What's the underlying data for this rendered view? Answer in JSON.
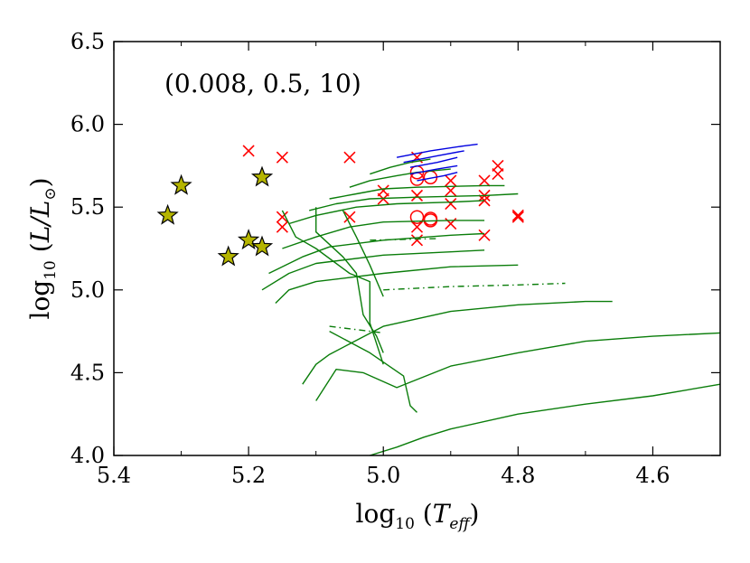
{
  "chart_data": {
    "type": "scatter",
    "title": "",
    "annotation": "(0.008, 0.5, 10)",
    "xlabel": {
      "prefix": "log",
      "sub": "10",
      "arg": "T",
      "arg_sub": "eff"
    },
    "ylabel": {
      "prefix": "log",
      "sub": "10",
      "arg": "L/L",
      "arg_sub": "⊙"
    },
    "xlim": [
      5.4,
      4.5
    ],
    "ylim": [
      4.0,
      6.5
    ],
    "x_ticks": [
      {
        "v": 5.4,
        "label": "5.4"
      },
      {
        "v": 5.2,
        "label": "5.2"
      },
      {
        "v": 5.0,
        "label": "5.0"
      },
      {
        "v": 4.8,
        "label": "4.8"
      },
      {
        "v": 4.6,
        "label": "4.6"
      }
    ],
    "x_minor_ticks": [
      5.3,
      5.1,
      4.9,
      4.7,
      4.5
    ],
    "y_ticks": [
      {
        "v": 4.0,
        "label": "4.0"
      },
      {
        "v": 4.5,
        "label": "4.5"
      },
      {
        "v": 5.0,
        "label": "5.0"
      },
      {
        "v": 5.5,
        "label": "5.5"
      },
      {
        "v": 6.0,
        "label": "6.0"
      },
      {
        "v": 6.5,
        "label": "6.5"
      }
    ],
    "colors": {
      "stars": "#b5b500",
      "cross": "#ff0000",
      "circle": "#ff0000",
      "green": "#0a7d0a",
      "blue": "#0000e0"
    },
    "series": [
      {
        "name": "stars",
        "marker": "star",
        "points": [
          [
            5.32,
            5.45
          ],
          [
            5.3,
            5.63
          ],
          [
            5.23,
            5.2
          ],
          [
            5.2,
            5.3
          ],
          [
            5.18,
            5.26
          ],
          [
            5.18,
            5.68
          ]
        ]
      },
      {
        "name": "crosses",
        "marker": "x",
        "points": [
          [
            5.2,
            5.84
          ],
          [
            5.15,
            5.8
          ],
          [
            5.15,
            5.44
          ],
          [
            5.15,
            5.38
          ],
          [
            5.05,
            5.8
          ],
          [
            5.05,
            5.44
          ],
          [
            5.0,
            5.6
          ],
          [
            5.0,
            5.55
          ],
          [
            4.95,
            5.8
          ],
          [
            4.95,
            5.57
          ],
          [
            4.95,
            5.38
          ],
          [
            4.95,
            5.3
          ],
          [
            4.9,
            5.66
          ],
          [
            4.9,
            5.6
          ],
          [
            4.9,
            5.52
          ],
          [
            4.9,
            5.4
          ],
          [
            4.85,
            5.66
          ],
          [
            4.85,
            5.57
          ],
          [
            4.85,
            5.54
          ],
          [
            4.85,
            5.33
          ],
          [
            4.83,
            5.75
          ],
          [
            4.83,
            5.7
          ],
          [
            4.8,
            5.45
          ],
          [
            4.8,
            5.44
          ]
        ]
      },
      {
        "name": "circles",
        "marker": "o",
        "points": [
          [
            4.95,
            5.71
          ],
          [
            4.95,
            5.67
          ],
          [
            4.93,
            5.68
          ],
          [
            4.95,
            5.44
          ],
          [
            4.93,
            5.43
          ],
          [
            4.93,
            5.42
          ]
        ]
      },
      {
        "name": "tracks",
        "style": "line",
        "color_key": "green",
        "lines": [
          [
            [
              5.02,
              4.0
            ],
            [
              4.98,
              4.05
            ],
            [
              4.94,
              4.11
            ],
            [
              4.9,
              4.16
            ],
            [
              4.8,
              4.25
            ],
            [
              4.7,
              4.31
            ],
            [
              4.6,
              4.36
            ],
            [
              4.5,
              4.43
            ]
          ],
          [
            [
              5.1,
              4.33
            ],
            [
              5.07,
              4.52
            ],
            [
              5.03,
              4.5
            ],
            [
              4.98,
              4.41
            ],
            [
              4.9,
              4.54
            ],
            [
              4.8,
              4.62
            ],
            [
              4.7,
              4.69
            ],
            [
              4.6,
              4.72
            ],
            [
              4.5,
              4.74
            ]
          ],
          [
            [
              5.12,
              4.43
            ],
            [
              5.1,
              4.55
            ],
            [
              5.08,
              4.61
            ],
            [
              5.0,
              4.78
            ],
            [
              4.9,
              4.87
            ],
            [
              4.8,
              4.91
            ],
            [
              4.7,
              4.93
            ],
            [
              4.66,
              4.93
            ]
          ],
          [
            [
              5.16,
              4.92
            ],
            [
              5.14,
              5.0
            ],
            [
              5.1,
              5.05
            ],
            [
              5.0,
              5.1
            ],
            [
              4.9,
              5.14
            ],
            [
              4.8,
              5.15
            ]
          ],
          [
            [
              5.18,
              5.0
            ],
            [
              5.14,
              5.1
            ],
            [
              5.1,
              5.16
            ],
            [
              5.0,
              5.21
            ],
            [
              4.9,
              5.23
            ],
            [
              4.85,
              5.24
            ]
          ],
          [
            [
              5.17,
              5.1
            ],
            [
              5.12,
              5.2
            ],
            [
              5.08,
              5.26
            ],
            [
              5.0,
              5.3
            ],
            [
              4.9,
              5.33
            ],
            [
              4.85,
              5.34
            ]
          ],
          [
            [
              5.15,
              5.25
            ],
            [
              5.1,
              5.32
            ],
            [
              5.05,
              5.38
            ],
            [
              5.0,
              5.41
            ],
            [
              4.9,
              5.42
            ],
            [
              4.85,
              5.42
            ]
          ],
          [
            [
              5.14,
              5.4
            ],
            [
              5.1,
              5.45
            ],
            [
              5.04,
              5.5
            ],
            [
              4.98,
              5.52
            ],
            [
              4.9,
              5.53
            ],
            [
              4.85,
              5.54
            ]
          ],
          [
            [
              5.11,
              5.48
            ],
            [
              5.07,
              5.52
            ],
            [
              5.02,
              5.55
            ],
            [
              4.95,
              5.56
            ],
            [
              4.85,
              5.57
            ],
            [
              4.8,
              5.58
            ]
          ],
          [
            [
              5.08,
              5.55
            ],
            [
              5.04,
              5.58
            ],
            [
              5.0,
              5.61
            ],
            [
              4.95,
              5.62
            ],
            [
              4.85,
              5.63
            ],
            [
              4.82,
              5.63
            ]
          ],
          [
            [
              5.05,
              5.62
            ],
            [
              5.02,
              5.66
            ],
            [
              4.98,
              5.69
            ],
            [
              4.95,
              5.71
            ],
            [
              4.9,
              5.73
            ]
          ],
          [
            [
              5.02,
              5.7
            ],
            [
              4.99,
              5.74
            ],
            [
              4.96,
              5.77
            ],
            [
              4.93,
              5.79
            ]
          ],
          [
            [
              5.15,
              5.48
            ],
            [
              5.13,
              5.32
            ],
            [
              5.1,
              5.25
            ],
            [
              5.05,
              5.1
            ],
            [
              5.02,
              5.05
            ],
            [
              5.02,
              4.8
            ],
            [
              5.0,
              4.55
            ]
          ],
          [
            [
              5.1,
              5.5
            ],
            [
              5.1,
              5.35
            ],
            [
              5.06,
              5.2
            ],
            [
              5.04,
              5.1
            ],
            [
              5.03,
              4.85
            ],
            [
              5.01,
              4.72
            ],
            [
              5.0,
              4.62
            ]
          ],
          [
            [
              5.06,
              5.48
            ],
            [
              5.04,
              5.32
            ],
            [
              5.02,
              5.15
            ],
            [
              5.0,
              4.96
            ]
          ],
          [
            [
              5.08,
              4.75
            ],
            [
              5.02,
              4.62
            ],
            [
              4.97,
              4.48
            ],
            [
              4.96,
              4.3
            ],
            [
              4.95,
              4.26
            ]
          ]
        ]
      },
      {
        "name": "tracks-dashed",
        "style": "dashdot",
        "color_key": "green",
        "lines": [
          [
            [
              5.0,
              5.0
            ],
            [
              4.9,
              5.02
            ],
            [
              4.8,
              5.03
            ],
            [
              4.73,
              5.04
            ]
          ],
          [
            [
              5.02,
              5.3
            ],
            [
              4.92,
              5.31
            ]
          ],
          [
            [
              5.08,
              4.78
            ],
            [
              5.0,
              4.74
            ]
          ]
        ]
      },
      {
        "name": "tracks-blue",
        "style": "line",
        "color_key": "blue",
        "lines": [
          [
            [
              4.98,
              5.8
            ],
            [
              4.93,
              5.84
            ],
            [
              4.88,
              5.87
            ],
            [
              4.86,
              5.88
            ]
          ],
          [
            [
              4.97,
              5.77
            ],
            [
              4.92,
              5.81
            ],
            [
              4.88,
              5.84
            ]
          ],
          [
            [
              4.96,
              5.74
            ],
            [
              4.92,
              5.77
            ],
            [
              4.89,
              5.8
            ]
          ],
          [
            [
              4.96,
              5.7
            ],
            [
              4.92,
              5.73
            ],
            [
              4.89,
              5.75
            ]
          ],
          [
            [
              4.95,
              5.66
            ],
            [
              4.91,
              5.69
            ],
            [
              4.89,
              5.71
            ]
          ]
        ]
      }
    ]
  }
}
